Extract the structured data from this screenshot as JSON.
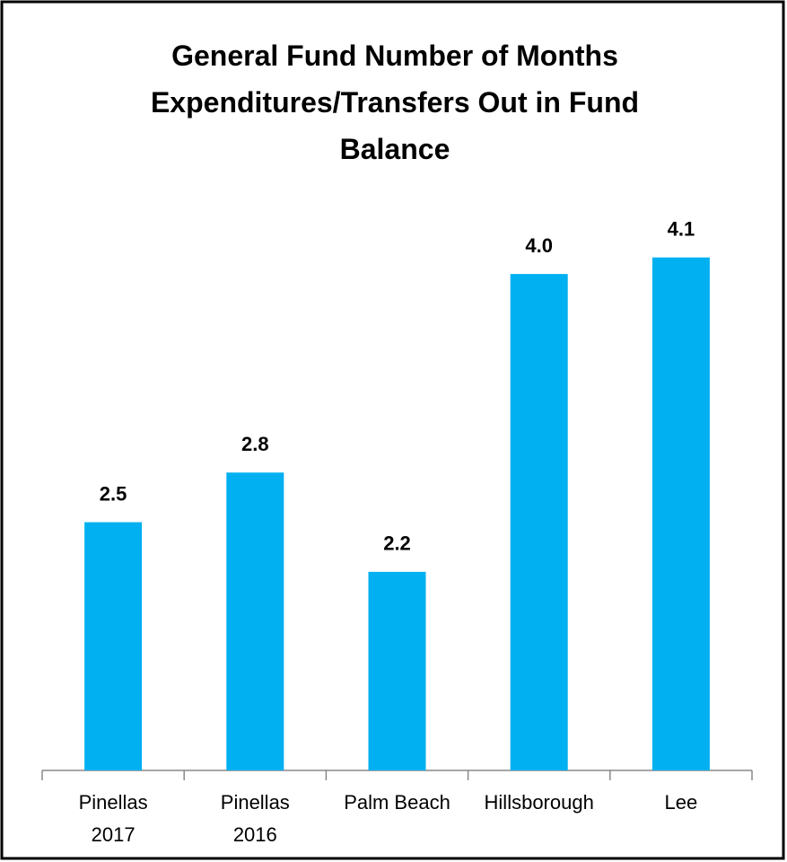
{
  "chart_data": {
    "type": "bar",
    "title": "General Fund Number of Months Expenditures/Transfers Out in Fund Balance",
    "categories": [
      "Pinellas\n2017",
      "Pinellas\n2016",
      "Palm Beach",
      "Hillsborough",
      "Lee"
    ],
    "values": [
      2.5,
      2.8,
      2.2,
      4.0,
      4.1
    ],
    "value_labels": [
      "2.5",
      "2.8",
      "2.2",
      "4.0",
      "4.1"
    ],
    "color": "#00b0f0",
    "ylim": [
      1,
      4.5
    ]
  }
}
